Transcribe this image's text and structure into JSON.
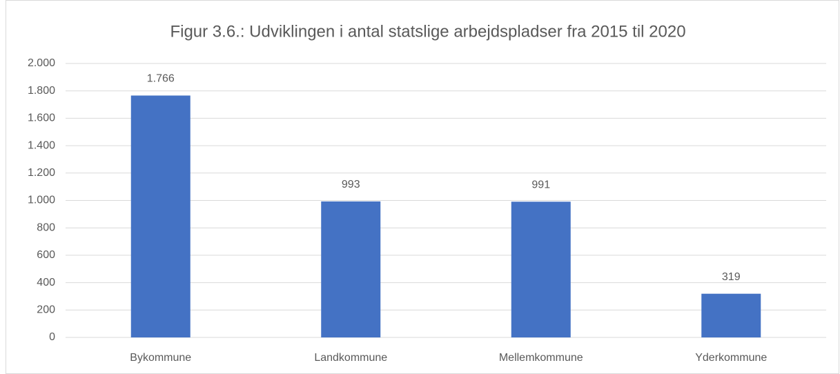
{
  "chart_data": {
    "type": "bar",
    "title": "Figur 3.6.: Udviklingen i antal statslige arbejdspladser fra 2015 til 2020",
    "categories": [
      "Bykommune",
      "Landkommune",
      "Mellemkommune",
      "Yderkommune"
    ],
    "values": [
      1766,
      993,
      991,
      319
    ],
    "value_labels": [
      "1.766",
      "993",
      "991",
      "319"
    ],
    "color": "#4472c4",
    "ylim": [
      0,
      2000
    ],
    "yticks": [
      0,
      200,
      400,
      600,
      800,
      {
        "value": 1000,
        "label": "1.000"
      },
      {
        "value": 1200,
        "label": "1.200"
      },
      {
        "value": 1400,
        "label": "1.400"
      },
      {
        "value": 1600,
        "label": "1.600"
      },
      {
        "value": 1800,
        "label": "1.800"
      },
      {
        "value": 2000,
        "label": "2.000"
      }
    ],
    "grid": true
  }
}
